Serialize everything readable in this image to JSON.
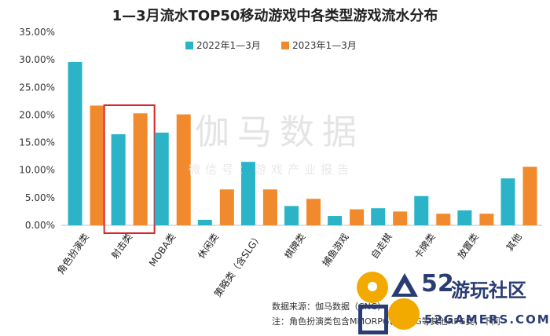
{
  "chart_data": {
    "type": "bar",
    "title": "1—3月流水TOP50移动游戏中各类型游戏流水分布",
    "categories": [
      "角色扮演类",
      "射击类",
      "MOBA类",
      "休闲类",
      "策略类（含SLG）",
      "棋牌类",
      "捕鱼游戏",
      "自走棋",
      "卡牌类",
      "放置类",
      "其他"
    ],
    "series": [
      {
        "name": "2022年1—3月",
        "color": "#2bb3c8",
        "values": [
          29.6,
          16.5,
          16.8,
          1.0,
          11.5,
          3.5,
          1.7,
          3.1,
          5.3,
          2.7,
          8.5
        ]
      },
      {
        "name": "2023年1—3月",
        "color": "#f08a2c",
        "values": [
          21.7,
          20.3,
          20.1,
          6.5,
          6.5,
          4.8,
          2.9,
          2.5,
          2.1,
          2.1,
          10.6
        ]
      }
    ],
    "yticks": [
      "0.00%",
      "5.00%",
      "10.00%",
      "15.00%",
      "20.00%",
      "25.00%",
      "30.00%",
      "35.00%"
    ],
    "ylim": [
      0,
      35
    ],
    "legend_position": "top-center",
    "highlight_category": "射击类",
    "highlight_color": "#d9262b"
  },
  "watermark": {
    "main": "伽马数据",
    "sub": "微信号：游戏产业报告"
  },
  "footer": {
    "source": "数据来源：伽马数据（CNG）",
    "note": "注：角色扮演类包含MMORPG、ARPG等其他RPG类，下同"
  },
  "logo": {
    "big": "52",
    "cn": "游玩社区",
    "url": "52GAMERS.COM"
  }
}
